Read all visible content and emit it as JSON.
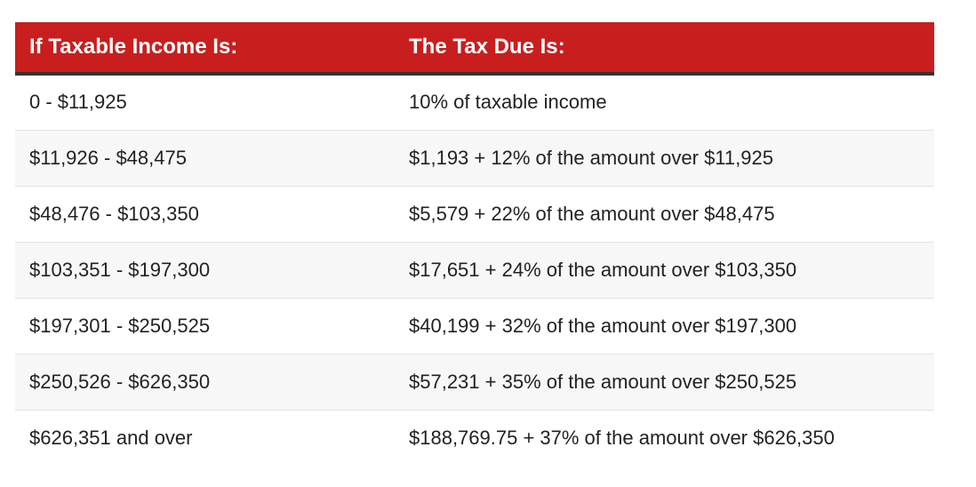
{
  "table": {
    "headers": [
      "If Taxable Income Is:",
      "The Tax Due Is:"
    ],
    "rows": [
      [
        "0 - $11,925",
        "10% of taxable income"
      ],
      [
        "$11,926 - $48,475",
        "$1,193 + 12% of the amount over $11,925"
      ],
      [
        "$48,476 - $103,350",
        "$5,579 + 22% of the amount over $48,475"
      ],
      [
        "$103,351 - $197,300",
        "$17,651 + 24% of the amount over $103,350"
      ],
      [
        "$197,301 - $250,525",
        "$40,199 + 32% of the amount over $197,300"
      ],
      [
        "$250,526 - $626,350",
        "$57,231 + 35% of the amount over $250,525"
      ],
      [
        "$626,351 and over",
        "$188,769.75 + 37% of the amount over $626,350"
      ]
    ]
  },
  "colors": {
    "header_background": "#c91e1e",
    "header_text": "#ffffff",
    "stripe": "#f7f7f7"
  }
}
